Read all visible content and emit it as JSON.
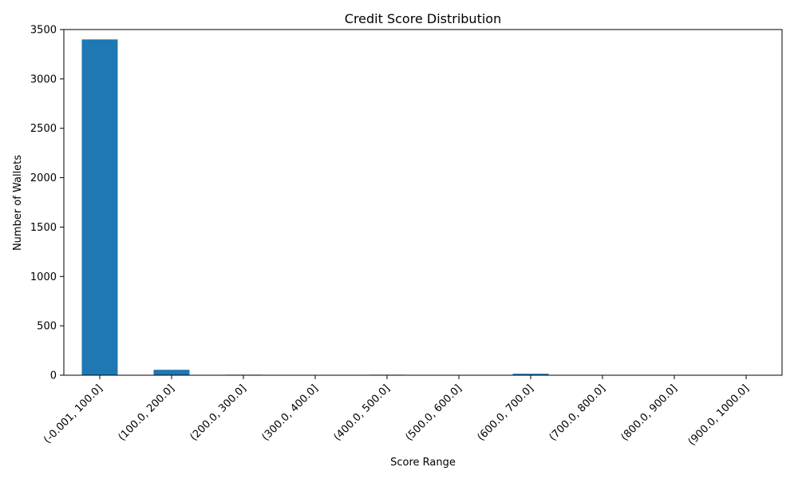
{
  "chart_data": {
    "type": "bar",
    "title": "Credit Score Distribution",
    "xlabel": "Score Range",
    "ylabel": "Number of Wallets",
    "categories": [
      "(-0.001, 100.0]",
      "(100.0, 200.0]",
      "(200.0, 300.0]",
      "(300.0, 400.0]",
      "(400.0, 500.0]",
      "(500.0, 600.0]",
      "(600.0, 700.0]",
      "(700.0, 800.0]",
      "(800.0, 900.0]",
      "(900.0, 1000.0]"
    ],
    "values": [
      3400,
      55,
      5,
      0,
      5,
      0,
      15,
      0,
      0,
      0
    ],
    "ylim": [
      0,
      3500
    ],
    "yticks": [
      0,
      500,
      1000,
      1500,
      2000,
      2500,
      3000,
      3500
    ],
    "bar_color": "#1f77b4",
    "grid": false,
    "legend": "none"
  }
}
